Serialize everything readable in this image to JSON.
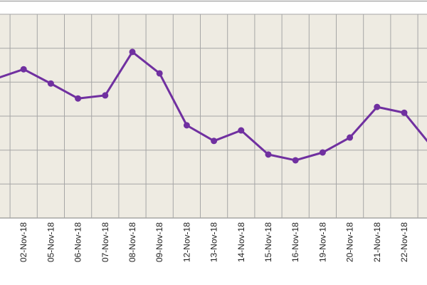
{
  "chart_data": {
    "type": "line",
    "categories": [
      null,
      "02-Nov-18",
      "05-Nov-18",
      "06-Nov-18",
      "07-Nov-18",
      "08-Nov-18",
      "09-Nov-18",
      "12-Nov-18",
      "13-Nov-18",
      "14-Nov-18",
      "15-Nov-18",
      "16-Nov-18",
      "19-Nov-18",
      "20-Nov-18",
      "21-Nov-18",
      "22-Nov-18",
      null
    ],
    "series": [
      {
        "color": "#7030a0",
        "values": [
          4.11,
          4.38,
          3.96,
          3.52,
          3.61,
          4.89,
          4.26,
          2.73,
          2.27,
          2.58,
          1.87,
          1.7,
          1.93,
          2.37,
          3.27,
          3.1,
          2.12
        ]
      }
    ],
    "ylim": [
      0,
      6
    ]
  }
}
